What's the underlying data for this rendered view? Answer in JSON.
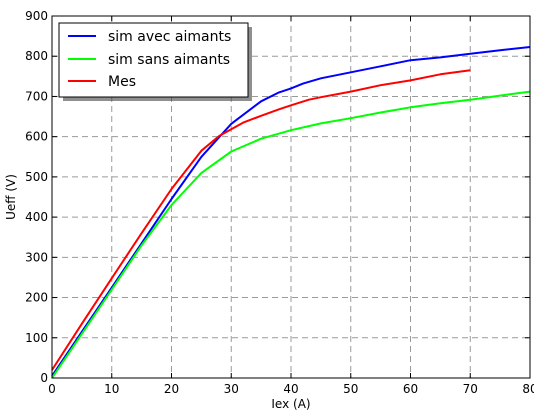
{
  "chart_data": {
    "type": "line",
    "title": "",
    "xlabel": "Iex (A)",
    "ylabel": "Ueff (V)",
    "xlim": [
      0,
      80
    ],
    "ylim": [
      0,
      900
    ],
    "xticks": [
      "0",
      "10",
      "20",
      "30",
      "40",
      "50",
      "60",
      "70",
      "80"
    ],
    "yticks": [
      "0",
      "100",
      "200",
      "300",
      "400",
      "500",
      "600",
      "700",
      "800",
      "900"
    ],
    "grid": true,
    "legend_position": "top-left",
    "series": [
      {
        "name": "sim avec aimants",
        "color": "#0000ff",
        "x": [
          0,
          5,
          10,
          15,
          20,
          25,
          30,
          35,
          38,
          40,
          42,
          45,
          50,
          55,
          60,
          65,
          70,
          75,
          80
        ],
        "y": [
          5,
          115,
          225,
          335,
          445,
          550,
          632,
          688,
          710,
          720,
          732,
          745,
          760,
          775,
          790,
          797,
          806,
          815,
          823
        ]
      },
      {
        "name": "sim sans aimants",
        "color": "#00ff00",
        "x": [
          0,
          5,
          10,
          15,
          20,
          25,
          30,
          35,
          40,
          45,
          50,
          55,
          60,
          65,
          70,
          75,
          80
        ],
        "y": [
          0,
          110,
          220,
          330,
          430,
          510,
          563,
          595,
          616,
          633,
          646,
          660,
          673,
          683,
          692,
          702,
          712
        ]
      },
      {
        "name": "Mes",
        "color": "#ff0000",
        "x": [
          0,
          5,
          10,
          15,
          20,
          25,
          28,
          32,
          35,
          38,
          40,
          43,
          45,
          50,
          55,
          60,
          65,
          70
        ],
        "y": [
          20,
          135,
          248,
          360,
          470,
          565,
          602,
          635,
          652,
          668,
          678,
          692,
          698,
          712,
          728,
          740,
          755,
          765
        ]
      }
    ]
  }
}
